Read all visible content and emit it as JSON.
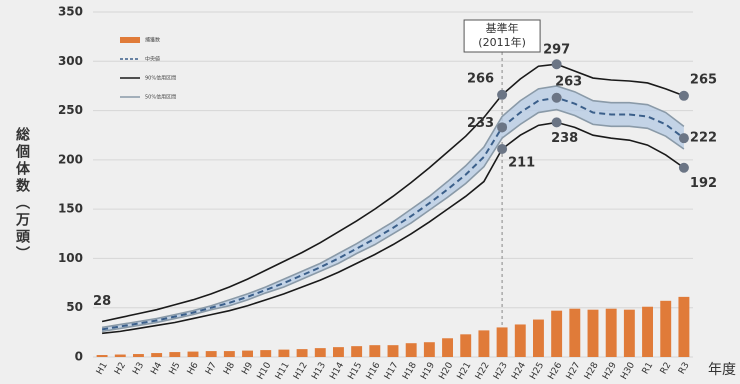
{
  "chart_data": {
    "type": "combo",
    "y_label": "総個体数（万頭）",
    "x_label": "年度",
    "categories": [
      "H1",
      "H2",
      "H3",
      "H4",
      "H5",
      "H6",
      "H7",
      "H8",
      "H9",
      "H10",
      "H11",
      "H12",
      "H13",
      "H14",
      "H15",
      "H16",
      "H17",
      "H18",
      "H19",
      "H20",
      "H21",
      "H22",
      "H23",
      "H24",
      "H25",
      "H26",
      "H27",
      "H28",
      "H29",
      "H30",
      "R1",
      "R2",
      "R3"
    ],
    "ylim": [
      0,
      350
    ],
    "yticks": [
      0,
      50,
      100,
      150,
      200,
      250,
      300,
      350
    ],
    "grid": true,
    "series": [
      {
        "name": "捕獲数",
        "type": "bar",
        "color": "#e07b39",
        "values": [
          2,
          2.5,
          3,
          4,
          5,
          5.5,
          6,
          6,
          6.5,
          7,
          7.5,
          8,
          9,
          10,
          11,
          12,
          12,
          14,
          15,
          19,
          23,
          27,
          30,
          33,
          38,
          47,
          49,
          48,
          49,
          48,
          51,
          57,
          61
        ]
      },
      {
        "name": "中央値",
        "type": "line",
        "dash": true,
        "color": "#3b5f8a",
        "values": [
          28,
          31,
          34,
          37,
          41,
          45,
          50,
          55,
          61,
          68,
          75,
          83,
          91,
          100,
          110,
          120,
          131,
          143,
          156,
          170,
          185,
          203,
          233,
          248,
          260,
          263,
          257,
          248,
          246,
          246,
          244,
          236,
          222
        ]
      },
      {
        "name": "90%信用区間",
        "type": "line",
        "color": "#1a1a1a",
        "values": [
          36,
          40,
          44,
          48,
          53,
          58,
          64,
          71,
          79,
          88,
          97,
          106,
          116,
          127,
          138,
          150,
          163,
          177,
          192,
          208,
          224,
          243,
          266,
          282,
          295,
          297,
          290,
          283,
          281,
          280,
          278,
          272,
          265
        ]
      },
      {
        "name": "90%信用区間",
        "type": "line",
        "color": "#1a1a1a",
        "values": [
          24,
          26,
          29,
          32,
          35,
          39,
          43,
          47,
          52,
          58,
          64,
          71,
          78,
          86,
          95,
          104,
          114,
          125,
          137,
          150,
          163,
          178,
          211,
          225,
          235,
          238,
          233,
          225,
          222,
          220,
          215,
          205,
          192
        ]
      },
      {
        "name": "50%信用区間",
        "type": "line",
        "color": "#8a9aa8",
        "band": "#b8cce4",
        "values": [
          30,
          33,
          36,
          39,
          43,
          47,
          52,
          58,
          64,
          71,
          79,
          87,
          95,
          105,
          115,
          126,
          137,
          150,
          163,
          178,
          194,
          213,
          244,
          260,
          272,
          275,
          269,
          260,
          258,
          258,
          256,
          248,
          234
        ]
      },
      {
        "name": "50%信用区間",
        "type": "line",
        "color": "#8a9aa8",
        "values": [
          26,
          29,
          32,
          35,
          39,
          43,
          48,
          52,
          58,
          65,
          71,
          79,
          87,
          95,
          105,
          114,
          125,
          136,
          149,
          162,
          176,
          193,
          222,
          236,
          248,
          251,
          245,
          236,
          234,
          234,
          232,
          224,
          211
        ]
      }
    ],
    "reference": {
      "x": "H23",
      "label": [
        "基準年",
        "(2011年)"
      ]
    },
    "annotations": [
      {
        "x": "H1",
        "value": 28,
        "dot": false
      },
      {
        "x": "H23",
        "value": 266,
        "dot": true
      },
      {
        "x": "H23",
        "value": 233,
        "dot": true
      },
      {
        "x": "H23",
        "value": 211,
        "dot": true
      },
      {
        "x": "H26",
        "value": 297,
        "dot": true
      },
      {
        "x": "H26",
        "value": 263,
        "dot": true
      },
      {
        "x": "H26",
        "value": 238,
        "dot": true
      },
      {
        "x": "R3",
        "value": 265,
        "dot": true
      },
      {
        "x": "R3",
        "value": 222,
        "dot": true
      },
      {
        "x": "R3",
        "value": 192,
        "dot": true
      }
    ]
  }
}
